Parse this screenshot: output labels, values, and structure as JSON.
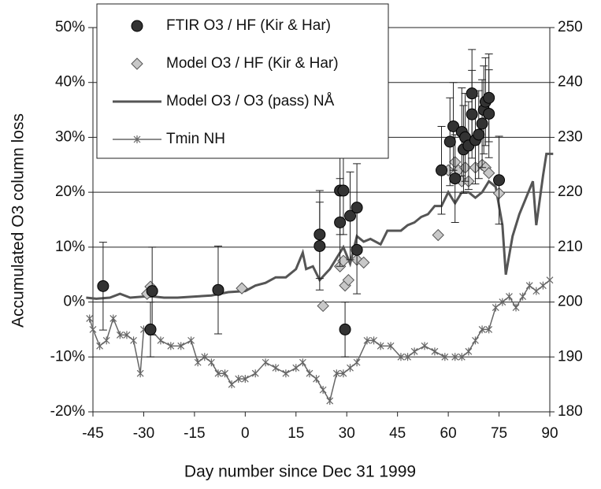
{
  "chart_data": {
    "type": "combo",
    "xlabel": "Day number since Dec 31 1999",
    "ylabel": "Accumulated O3  column loss",
    "xlim": [
      -45,
      90
    ],
    "xticks": [
      -45,
      -30,
      -15,
      0,
      15,
      30,
      45,
      60,
      75,
      90
    ],
    "ylim": [
      -20,
      50
    ],
    "yticks": [
      {
        "value": -20,
        "label": "-20%"
      },
      {
        "value": -10,
        "label": "-10%"
      },
      {
        "value": 0,
        "label": "0%"
      },
      {
        "value": 10,
        "label": "10%"
      },
      {
        "value": 20,
        "label": "20%"
      },
      {
        "value": 30,
        "label": "30%"
      },
      {
        "value": 40,
        "label": "40%"
      },
      {
        "value": 50,
        "label": "50%"
      }
    ],
    "y2lim": [
      180,
      250
    ],
    "y2ticks": [
      180,
      190,
      200,
      210,
      220,
      230,
      240,
      250
    ],
    "grid": true,
    "legend": "upper left",
    "series": [
      {
        "name": "FTIR  O3 / HF (Kir & Har)",
        "type": "scatter",
        "marker": "circle",
        "color": "#333333",
        "x": [
          -42,
          -28,
          -27.5,
          -8,
          22,
          22,
          28,
          28,
          29,
          29.5,
          31,
          33,
          33,
          58,
          60.5,
          61.5,
          62,
          64,
          64.5,
          65,
          66,
          67,
          67,
          68,
          69,
          70,
          70.5,
          71,
          72,
          72,
          75
        ],
        "values": [
          2.9,
          -5,
          2,
          2.2,
          12.3,
          10.2,
          14.5,
          20.3,
          20.3,
          -5,
          15.7,
          17.2,
          9.5,
          24,
          29.2,
          32,
          22.5,
          31,
          27.8,
          30,
          28.5,
          38,
          34.2,
          29.5,
          30.5,
          32.5,
          35,
          36.5,
          37.2,
          34.3,
          22.2
        ],
        "errors": [
          8,
          5,
          8,
          8,
          8,
          8,
          8,
          8,
          8,
          5,
          8,
          8,
          8,
          8,
          8,
          8,
          8,
          8,
          8,
          8,
          8,
          8,
          8,
          8,
          8,
          8,
          8,
          8,
          8,
          8,
          8
        ]
      },
      {
        "name": "Model O3 / HF (Kir & Har)",
        "type": "scatter",
        "marker": "diamond",
        "color": "#c8c8c8",
        "x": [
          -29,
          -28,
          -1,
          23,
          28,
          29,
          29.5,
          30.5,
          33,
          35,
          57,
          60,
          62,
          63,
          64,
          65,
          66,
          68,
          70,
          71,
          72,
          75
        ],
        "values": [
          1.5,
          2.8,
          2.5,
          -0.7,
          6.5,
          7.5,
          3,
          4,
          7.7,
          7.2,
          12.2,
          24,
          25.5,
          24,
          22,
          24.5,
          22,
          24.5,
          25,
          24.5,
          23.5,
          19.8
        ]
      },
      {
        "name": "Model O3 / O3 (pass) NÅ",
        "type": "line",
        "marker": "none",
        "color": "#555555",
        "x": [
          -47,
          -44,
          -40,
          -37,
          -34,
          -30,
          -27,
          -24,
          -20,
          -15,
          -10,
          -5,
          0,
          3,
          6,
          9,
          12,
          15,
          17,
          18,
          20,
          22,
          25,
          27,
          29,
          31,
          33,
          35,
          37,
          40,
          42,
          44,
          46,
          48,
          50,
          52,
          54,
          56,
          58,
          60,
          62,
          64,
          66,
          68,
          70,
          72,
          74,
          76,
          77,
          79,
          81,
          83,
          85,
          86,
          88,
          89,
          91
        ],
        "values": [
          0.8,
          0.6,
          0.8,
          1.5,
          0.8,
          1,
          1,
          0.8,
          0.8,
          1,
          1.2,
          1.8,
          2,
          3,
          3.5,
          4.5,
          4.5,
          6,
          9,
          6,
          6.5,
          4,
          6,
          8,
          10,
          7,
          12,
          11,
          11.5,
          10.5,
          13,
          13,
          13,
          14,
          14.5,
          15.5,
          16,
          17.5,
          17.5,
          20,
          18,
          20,
          20,
          19,
          20,
          22,
          21,
          14,
          5,
          12,
          16,
          19,
          22,
          14,
          23,
          27,
          27
        ]
      },
      {
        "name": "Tmin NH",
        "type": "line",
        "marker": "asterisk",
        "axis": "y2",
        "color": "#666666",
        "x": [
          -46,
          -45,
          -43,
          -41,
          -39,
          -37,
          -35,
          -33,
          -31,
          -30,
          -28,
          -25,
          -22,
          -19,
          -16,
          -14,
          -12,
          -10,
          -8,
          -6,
          -4,
          -2,
          0,
          3,
          6,
          9,
          12,
          15,
          17,
          19,
          21,
          23,
          25,
          27,
          29,
          31,
          33,
          36,
          38,
          40,
          43,
          46,
          48,
          50,
          53,
          56,
          59,
          62,
          64,
          66,
          68,
          70,
          72,
          74,
          76,
          78,
          80,
          82,
          84,
          86,
          88,
          90
        ],
        "values": [
          197,
          195,
          192,
          193,
          197,
          194,
          194,
          193,
          187,
          195,
          195,
          193,
          192,
          192,
          193,
          189,
          190,
          189,
          187,
          187,
          185,
          186,
          186,
          187,
          189,
          188,
          187,
          188,
          189,
          187,
          186,
          184,
          182,
          187,
          187,
          188,
          189,
          193,
          193,
          192,
          192,
          190,
          190,
          191,
          192,
          191,
          190,
          190,
          190,
          191,
          193,
          195,
          195,
          199,
          200,
          201,
          199,
          201,
          203,
          202,
          203,
          204
        ]
      }
    ]
  }
}
